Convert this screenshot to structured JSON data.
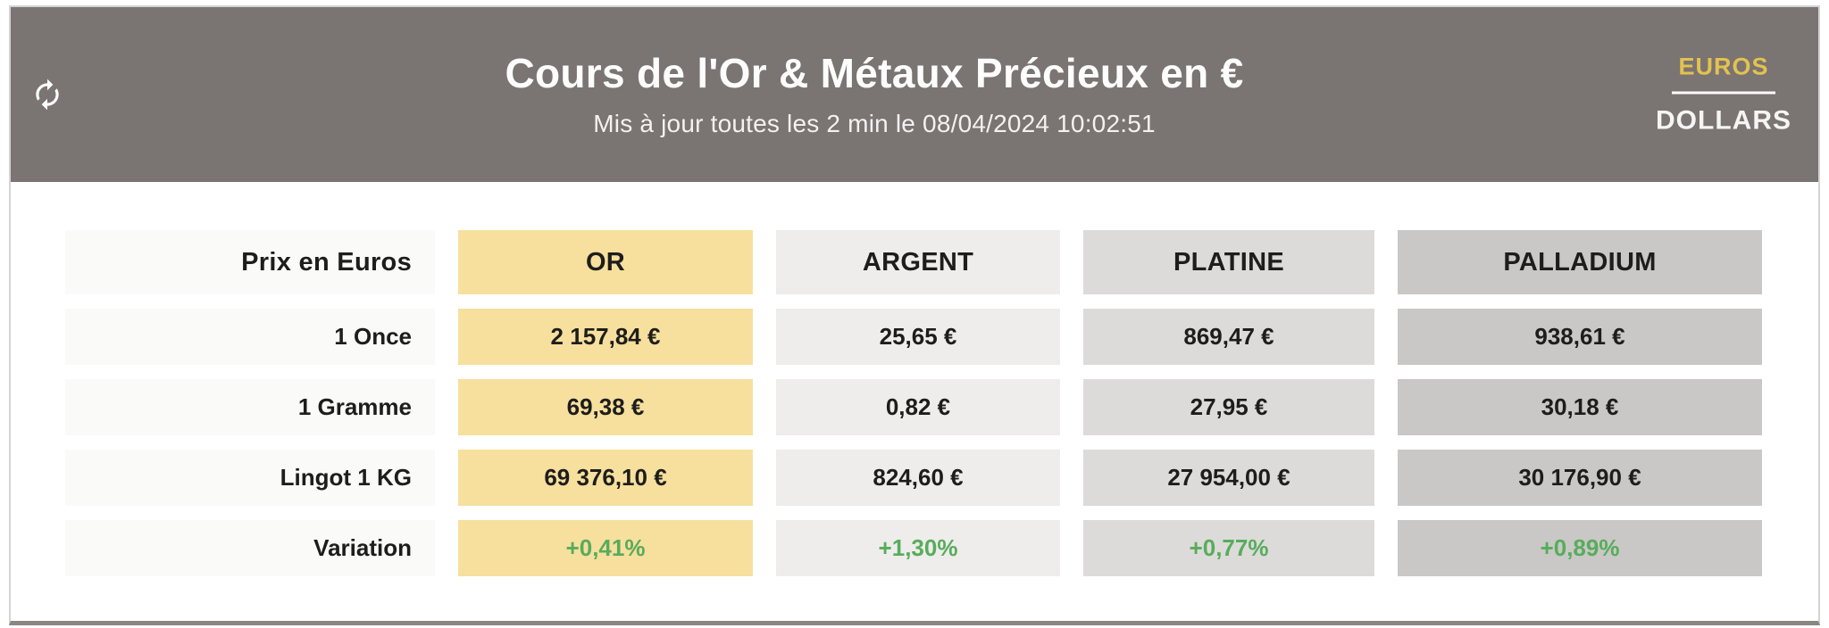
{
  "header": {
    "title": "Cours de l'Or & Métaux Précieux en €",
    "subtitle": "Mis à jour toutes les 2 min le 08/04/2024 10:02:51",
    "currency": {
      "selected": "EUROS",
      "euros_label": "EUROS",
      "dollars_label": "DOLLARS"
    }
  },
  "table": {
    "corner_label": "Prix en Euros",
    "columns": [
      {
        "key": "or",
        "label": "OR"
      },
      {
        "key": "argent",
        "label": "ARGENT"
      },
      {
        "key": "platine",
        "label": "PLATINE"
      },
      {
        "key": "palladium",
        "label": "PALLADIUM"
      }
    ],
    "rows": [
      {
        "label": "1 Once",
        "type": "price",
        "values": [
          "2 157,84 €",
          "25,65 €",
          "869,47 €",
          "938,61 €"
        ]
      },
      {
        "label": "1 Gramme",
        "type": "price",
        "values": [
          "69,38 €",
          "0,82 €",
          "27,95 €",
          "30,18 €"
        ]
      },
      {
        "label": "Lingot 1 KG",
        "type": "price",
        "values": [
          "69 376,10 €",
          "824,60 €",
          "27 954,00 €",
          "30 176,90 €"
        ]
      },
      {
        "label": "Variation",
        "type": "variation",
        "values": [
          "+0,41%",
          "+1,30%",
          "+0,77%",
          "+0,89%"
        ]
      }
    ]
  },
  "colors": {
    "header_bg": "#7a7472",
    "or": "#f7df9d",
    "argent": "#eeedeb",
    "platine": "#dcdbd9",
    "palladium": "#c9c8c6",
    "label_bg": "#fafaf9",
    "accent_gold": "#e3c24f",
    "positive_green": "#58ac5c",
    "text_dark": "#1d1d1b"
  }
}
